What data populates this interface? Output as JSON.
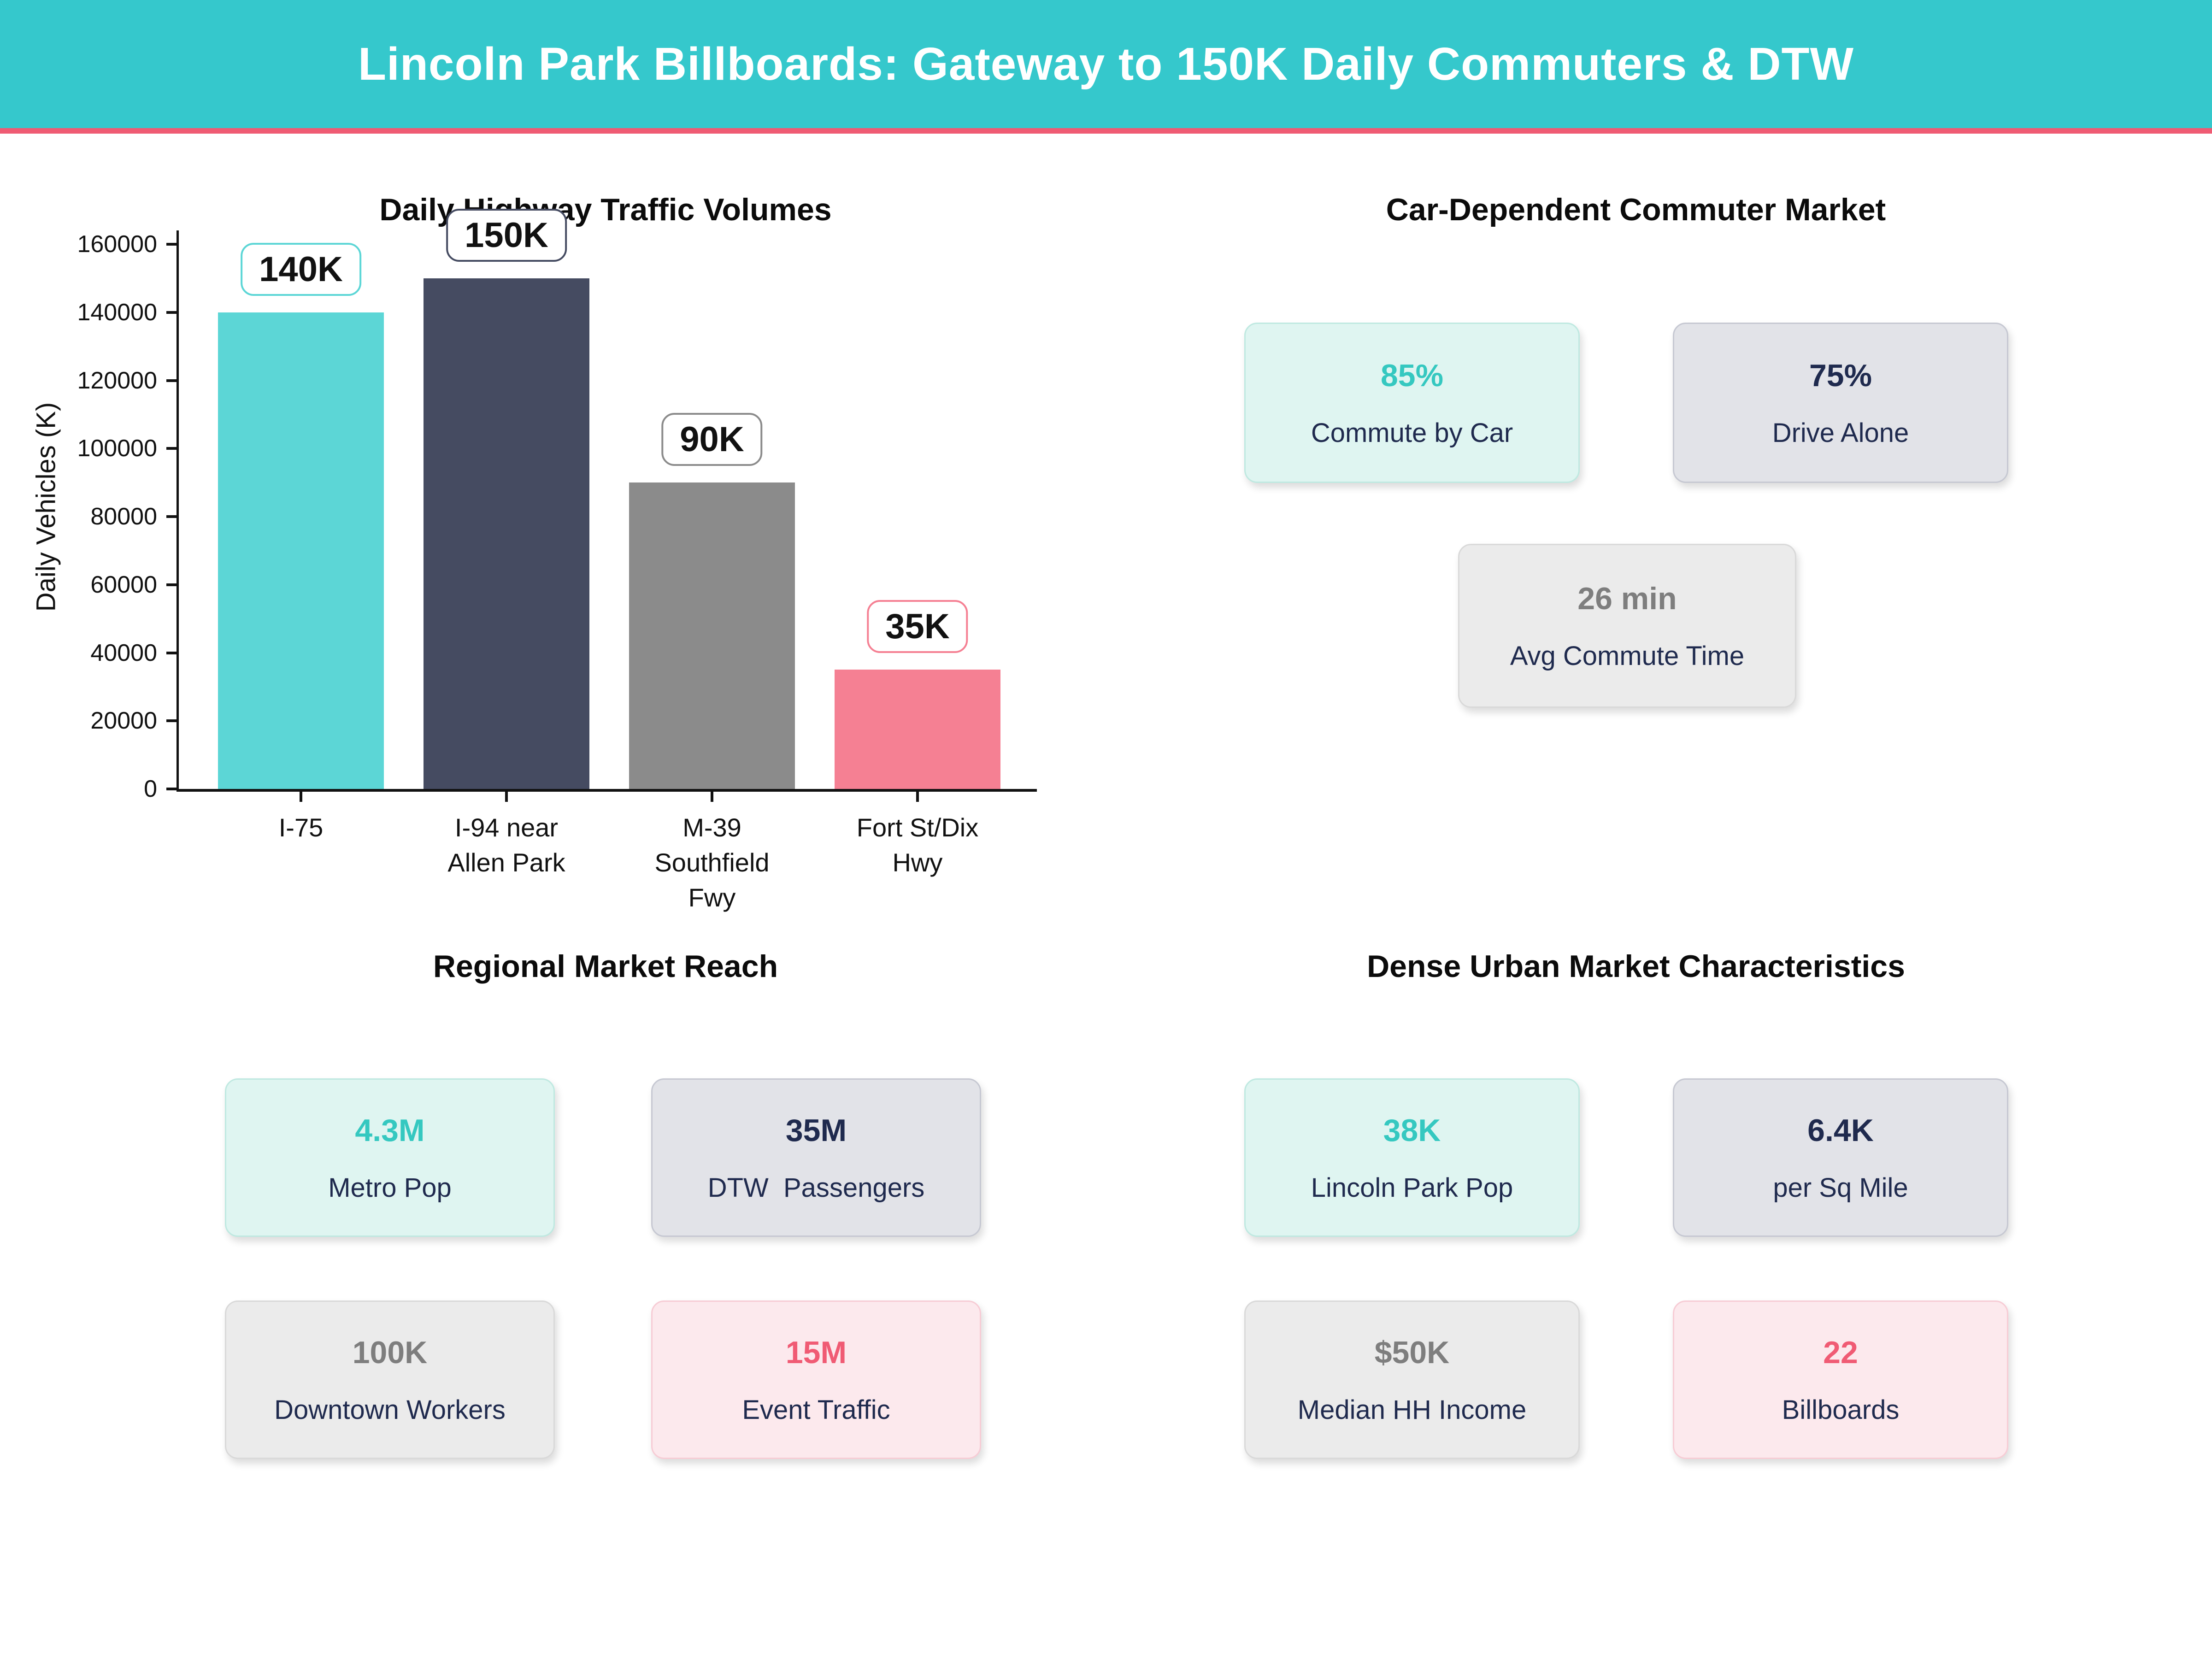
{
  "banner": {
    "title": "Lincoln Park Billboards: Gateway to 150K Daily Commuters & DTW",
    "bg_color": "#35c8cc",
    "accent_color": "#ef5b73"
  },
  "chart_data": [
    {
      "type": "bar",
      "title": "Daily Highway Traffic Volumes",
      "categories": [
        "I-75",
        "I-94 near\nAllen Park",
        "M-39\nSouthfield\nFwy",
        "Fort St/Dix\nHwy"
      ],
      "values": [
        140000,
        150000,
        90000,
        35000
      ],
      "data_labels": [
        "140K",
        "150K",
        "90K",
        "35K"
      ],
      "bar_colors": [
        "#5cd6d6",
        "#454b61",
        "#8b8b8b",
        "#f58093"
      ],
      "xlabel": "",
      "ylabel": "Daily Vehicles (K)",
      "ylim": [
        0,
        160000
      ],
      "yticks": [
        0,
        20000,
        40000,
        60000,
        80000,
        100000,
        120000,
        140000,
        160000
      ],
      "grid": false,
      "legend": false
    },
    {
      "type": "stat_cards",
      "title": "Car-Dependent Commuter Market",
      "cards": [
        {
          "value": "85%",
          "label": "Commute by Car",
          "style": "mint",
          "value_color": "#35c8c0"
        },
        {
          "value": "75%",
          "label": "Drive Alone",
          "style": "lavender",
          "value_color": "#1f2a4e"
        },
        {
          "value": "26 min",
          "label": "Avg Commute Time",
          "style": "gray",
          "value_color": "#7e7e7e"
        }
      ]
    },
    {
      "type": "stat_cards",
      "title": "Regional Market Reach",
      "cards": [
        {
          "value": "4.3M",
          "label": "Metro Pop",
          "style": "mint",
          "value_color": "#35c8c0"
        },
        {
          "value": "35M",
          "label": "DTW  Passengers",
          "style": "lavender",
          "value_color": "#1f2a4e"
        },
        {
          "value": "100K",
          "label": "Downtown Workers",
          "style": "gray",
          "value_color": "#7e7e7e"
        },
        {
          "value": "15M",
          "label": "Event Traffic",
          "style": "pink",
          "value_color": "#f05b74"
        }
      ]
    },
    {
      "type": "stat_cards",
      "title": "Dense Urban Market Characteristics",
      "cards": [
        {
          "value": "38K",
          "label": "Lincoln Park Pop",
          "style": "mint",
          "value_color": "#35c8c0"
        },
        {
          "value": "6.4K",
          "label": "per Sq Mile",
          "style": "lavender",
          "value_color": "#1f2a4e"
        },
        {
          "value": "$50K",
          "label": "Median HH Income",
          "style": "gray",
          "value_color": "#7e7e7e"
        },
        {
          "value": "22",
          "label": "Billboards",
          "style": "pink",
          "value_color": "#f05b74"
        }
      ]
    }
  ]
}
